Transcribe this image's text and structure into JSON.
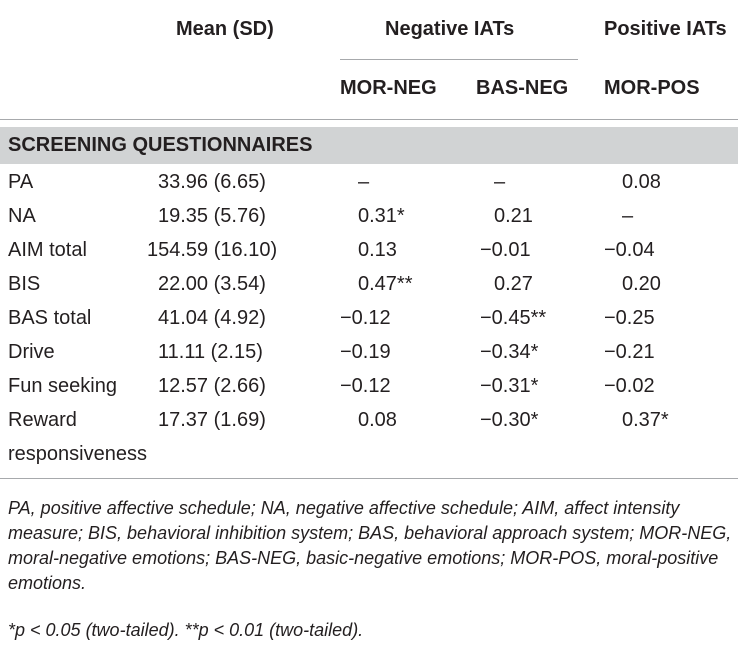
{
  "header": {
    "mean_sd": "Mean (SD)",
    "negative_iats": "Negative IATs",
    "positive_iats": "Positive IATs",
    "mor_neg": "MOR-NEG",
    "bas_neg": "BAS-NEG",
    "mor_pos": "MOR-POS"
  },
  "section_title": "SCREENING QUESTIONNAIRES",
  "rows": [
    {
      "label": "PA",
      "mean": "33.96 (6.65)",
      "mor_neg": "–",
      "bas_neg": "–",
      "mor_pos": "0.08"
    },
    {
      "label": "NA",
      "mean": "19.35 (5.76)",
      "mor_neg": "0.31*",
      "bas_neg": "0.21",
      "mor_pos": "–"
    },
    {
      "label": "AIM total",
      "mean": "154.59 (16.10)",
      "mor_neg": "0.13",
      "bas_neg": "−0.01",
      "mor_pos": "−0.04"
    },
    {
      "label": "BIS",
      "mean": "22.00 (3.54)",
      "mor_neg": "0.47**",
      "bas_neg": "0.27",
      "mor_pos": "0.20"
    },
    {
      "label": "BAS total",
      "mean": "41.04 (4.92)",
      "mor_neg": "−0.12",
      "bas_neg": "−0.45**",
      "mor_pos": "−0.25"
    },
    {
      "label": "Drive",
      "mean": "11.11 (2.15)",
      "mor_neg": "−0.19",
      "bas_neg": "−0.34*",
      "mor_pos": "−0.21"
    },
    {
      "label": "Fun seeking",
      "mean": "12.57 (2.66)",
      "mor_neg": "−0.12",
      "bas_neg": "−0.31*",
      "mor_pos": "−0.02"
    },
    {
      "label": "Reward",
      "label_line2": "responsiveness",
      "mean": "17.37 (1.69)",
      "mor_neg": "0.08",
      "bas_neg": "−0.30*",
      "mor_pos": "0.37*"
    }
  ],
  "footnote": {
    "abbreviations": "PA, positive affective schedule; NA, negative affective schedule; AIM, affect intensity measure; BIS, behavioral inhibition system; BAS, behavioral approach system; MOR-NEG, moral-negative emotions; BAS-NEG, basic-negative emotions; MOR-POS, moral-positive emotions.",
    "significance": "*p < 0.05 (two-tailed). **p < 0.01 (two-tailed)."
  }
}
